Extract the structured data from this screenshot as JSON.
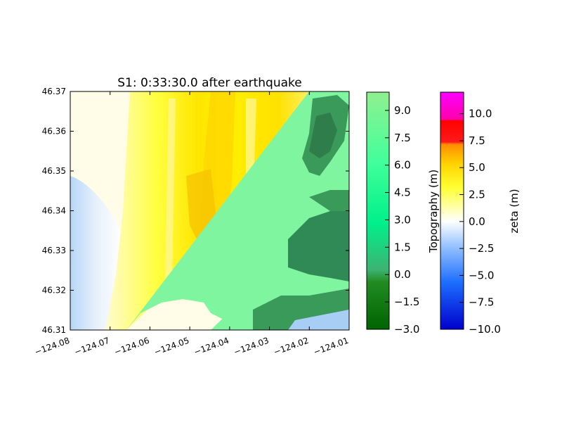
{
  "chart_data": {
    "type": "heatmap",
    "title": "S1: 0:33:30.0 after earthquake",
    "xlabel": "",
    "ylabel": "",
    "xlim": [
      -124.08,
      -124.01
    ],
    "ylim": [
      46.31,
      46.37
    ],
    "x_ticks": [
      -124.08,
      -124.07,
      -124.06,
      -124.05,
      -124.04,
      -124.03,
      -124.02,
      -124.01
    ],
    "x_tick_labels": [
      "−124.08",
      "−124.07",
      "−124.06",
      "−124.05",
      "−124.04",
      "−124.03",
      "−124.02",
      "−124.01"
    ],
    "y_ticks": [
      46.31,
      46.32,
      46.33,
      46.34,
      46.35,
      46.36,
      46.37
    ],
    "y_tick_labels": [
      "46.31",
      "46.32",
      "46.33",
      "46.34",
      "46.35",
      "46.36",
      "46.37"
    ],
    "grid": false,
    "colorbars": [
      {
        "label": "Topography (m)",
        "range": [
          -3.0,
          10.0
        ],
        "ticks": [
          -3.0,
          -1.5,
          0.0,
          1.5,
          3.0,
          4.5,
          6.0,
          7.5,
          9.0
        ],
        "tick_labels": [
          "−3.0",
          "−1.5",
          "0.0",
          "1.5",
          "3.0",
          "4.5",
          "6.0",
          "7.5",
          "9.0"
        ],
        "colors": [
          "#006400",
          "#3cb371",
          "#00fa9a",
          "#7fff7f",
          "#90ee90"
        ]
      },
      {
        "label": "zeta (m)",
        "range": [
          -10.0,
          12.0
        ],
        "ticks": [
          -10.0,
          -7.5,
          -5.0,
          -2.5,
          0.0,
          2.5,
          5.0,
          7.5,
          10.0
        ],
        "tick_labels": [
          "−10.0",
          "−7.5",
          "−5.0",
          "−2.5",
          "0.0",
          "2.5",
          "5.0",
          "7.5",
          "10.0"
        ],
        "colors": [
          "#0000cd",
          "#1e90ff",
          "#87cefa",
          "#ffffff",
          "#ffff00",
          "#ffd700",
          "#ff8c00",
          "#ff0000",
          "#ff00ff"
        ]
      }
    ]
  }
}
